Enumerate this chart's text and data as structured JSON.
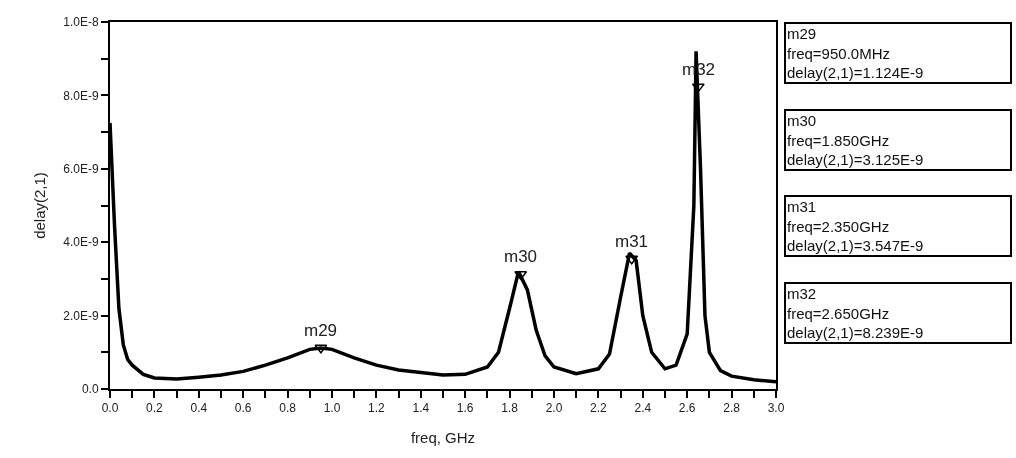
{
  "chart_data": {
    "type": "line",
    "xlabel": "freq, GHz",
    "ylabel": "delay(2,1)",
    "xlim": [
      0,
      3.0
    ],
    "ylim": [
      0,
      1e-08
    ],
    "xticks": [
      {
        "value": 0,
        "label": "0.0"
      },
      {
        "value": 0.1,
        "label": null
      },
      {
        "value": 0.2,
        "label": "0.2"
      },
      {
        "value": 0.3,
        "label": null
      },
      {
        "value": 0.4,
        "label": "0.4"
      },
      {
        "value": 0.5,
        "label": null
      },
      {
        "value": 0.6,
        "label": "0.6"
      },
      {
        "value": 0.7,
        "label": null
      },
      {
        "value": 0.8,
        "label": "0.8"
      },
      {
        "value": 0.9,
        "label": null
      },
      {
        "value": 1.0,
        "label": "1.0"
      },
      {
        "value": 1.1,
        "label": null
      },
      {
        "value": 1.2,
        "label": "1.2"
      },
      {
        "value": 1.3,
        "label": null
      },
      {
        "value": 1.4,
        "label": "1.4"
      },
      {
        "value": 1.5,
        "label": null
      },
      {
        "value": 1.6,
        "label": "1.6"
      },
      {
        "value": 1.7,
        "label": null
      },
      {
        "value": 1.8,
        "label": "1.8"
      },
      {
        "value": 1.9,
        "label": null
      },
      {
        "value": 2.0,
        "label": "2.0"
      },
      {
        "value": 2.1,
        "label": null
      },
      {
        "value": 2.2,
        "label": "2.2"
      },
      {
        "value": 2.3,
        "label": null
      },
      {
        "value": 2.4,
        "label": "2.4"
      },
      {
        "value": 2.5,
        "label": null
      },
      {
        "value": 2.6,
        "label": "2.6"
      },
      {
        "value": 2.7,
        "label": null
      },
      {
        "value": 2.8,
        "label": "2.8"
      },
      {
        "value": 2.9,
        "label": null
      },
      {
        "value": 3.0,
        "label": "3.0"
      }
    ],
    "yticks": [
      {
        "value": 0,
        "label": "0.0"
      },
      {
        "value": 1e-09,
        "label": null
      },
      {
        "value": 2e-09,
        "label": "2.0E-9"
      },
      {
        "value": 3e-09,
        "label": null
      },
      {
        "value": 4e-09,
        "label": "4.0E-9"
      },
      {
        "value": 5e-09,
        "label": null
      },
      {
        "value": 6e-09,
        "label": "6.0E-9"
      },
      {
        "value": 7e-09,
        "label": null
      },
      {
        "value": 8e-09,
        "label": "8.0E-9"
      },
      {
        "value": 9e-09,
        "label": null
      },
      {
        "value": 1e-08,
        "label": "1.0E-8"
      }
    ],
    "series": [
      {
        "color": "#000000",
        "marker": "none",
        "line_style": "solid",
        "x": [
          0.0,
          0.02,
          0.04,
          0.06,
          0.08,
          0.1,
          0.15,
          0.2,
          0.3,
          0.4,
          0.5,
          0.6,
          0.7,
          0.8,
          0.9,
          0.95,
          1.0,
          1.1,
          1.2,
          1.3,
          1.4,
          1.5,
          1.6,
          1.7,
          1.75,
          1.8,
          1.84,
          1.88,
          1.92,
          1.96,
          2.0,
          2.1,
          2.2,
          2.25,
          2.3,
          2.34,
          2.37,
          2.4,
          2.44,
          2.5,
          2.55,
          2.6,
          2.63,
          2.64,
          2.66,
          2.68,
          2.7,
          2.75,
          2.8,
          2.9,
          3.0
        ],
        "values": [
          7.25e-09,
          4.5e-09,
          2.2e-09,
          1.2e-09,
          8e-10,
          6.5e-10,
          4e-10,
          3e-10,
          2.7e-10,
          3.2e-10,
          3.8e-10,
          4.8e-10,
          6.5e-10,
          8.5e-10,
          1.08e-09,
          1.12e-09,
          1.08e-09,
          8.5e-10,
          6.5e-10,
          5.2e-10,
          4.5e-10,
          3.8e-10,
          4e-10,
          6e-10,
          1e-09,
          2.2e-09,
          3.2e-09,
          2.7e-09,
          1.6e-09,
          9e-10,
          6e-10,
          4.2e-10,
          5.5e-10,
          9.5e-10,
          2.5e-09,
          3.7e-09,
          3.5e-09,
          2e-09,
          1e-09,
          5.5e-10,
          6.5e-10,
          1.5e-09,
          5e-09,
          9.2e-09,
          6e-09,
          2e-09,
          1e-09,
          5e-10,
          3.5e-10,
          2.5e-10,
          2e-10
        ]
      },
      {
        "type": "scatter",
        "color": "#000000",
        "marker": "triangle",
        "x": [
          0.95,
          1.85,
          2.35,
          2.65
        ],
        "values": [
          1.124e-09,
          3.125e-09,
          3.547e-09,
          8.239e-09
        ]
      }
    ],
    "annotations": [
      {
        "text": "m29",
        "x": 0.95,
        "y": 1.124e-09
      },
      {
        "text": "m30",
        "x": 1.85,
        "y": 3.125e-09
      },
      {
        "text": "m31",
        "x": 2.35,
        "y": 3.547e-09
      },
      {
        "text": "m32",
        "x": 2.65,
        "y": 8.239e-09
      },
      "m29\nfreq=950.0MHz\ndelay(2,1)=1.124E-9",
      "m30\nfreq=1.850GHz\ndelay(2,1)=3.125E-9",
      "m31\nfreq=2.350GHz\ndelay(2,1)=3.547E-9",
      "m32\nfreq=2.650GHz\ndelay(2,1)=8.239E-9"
    ]
  }
}
